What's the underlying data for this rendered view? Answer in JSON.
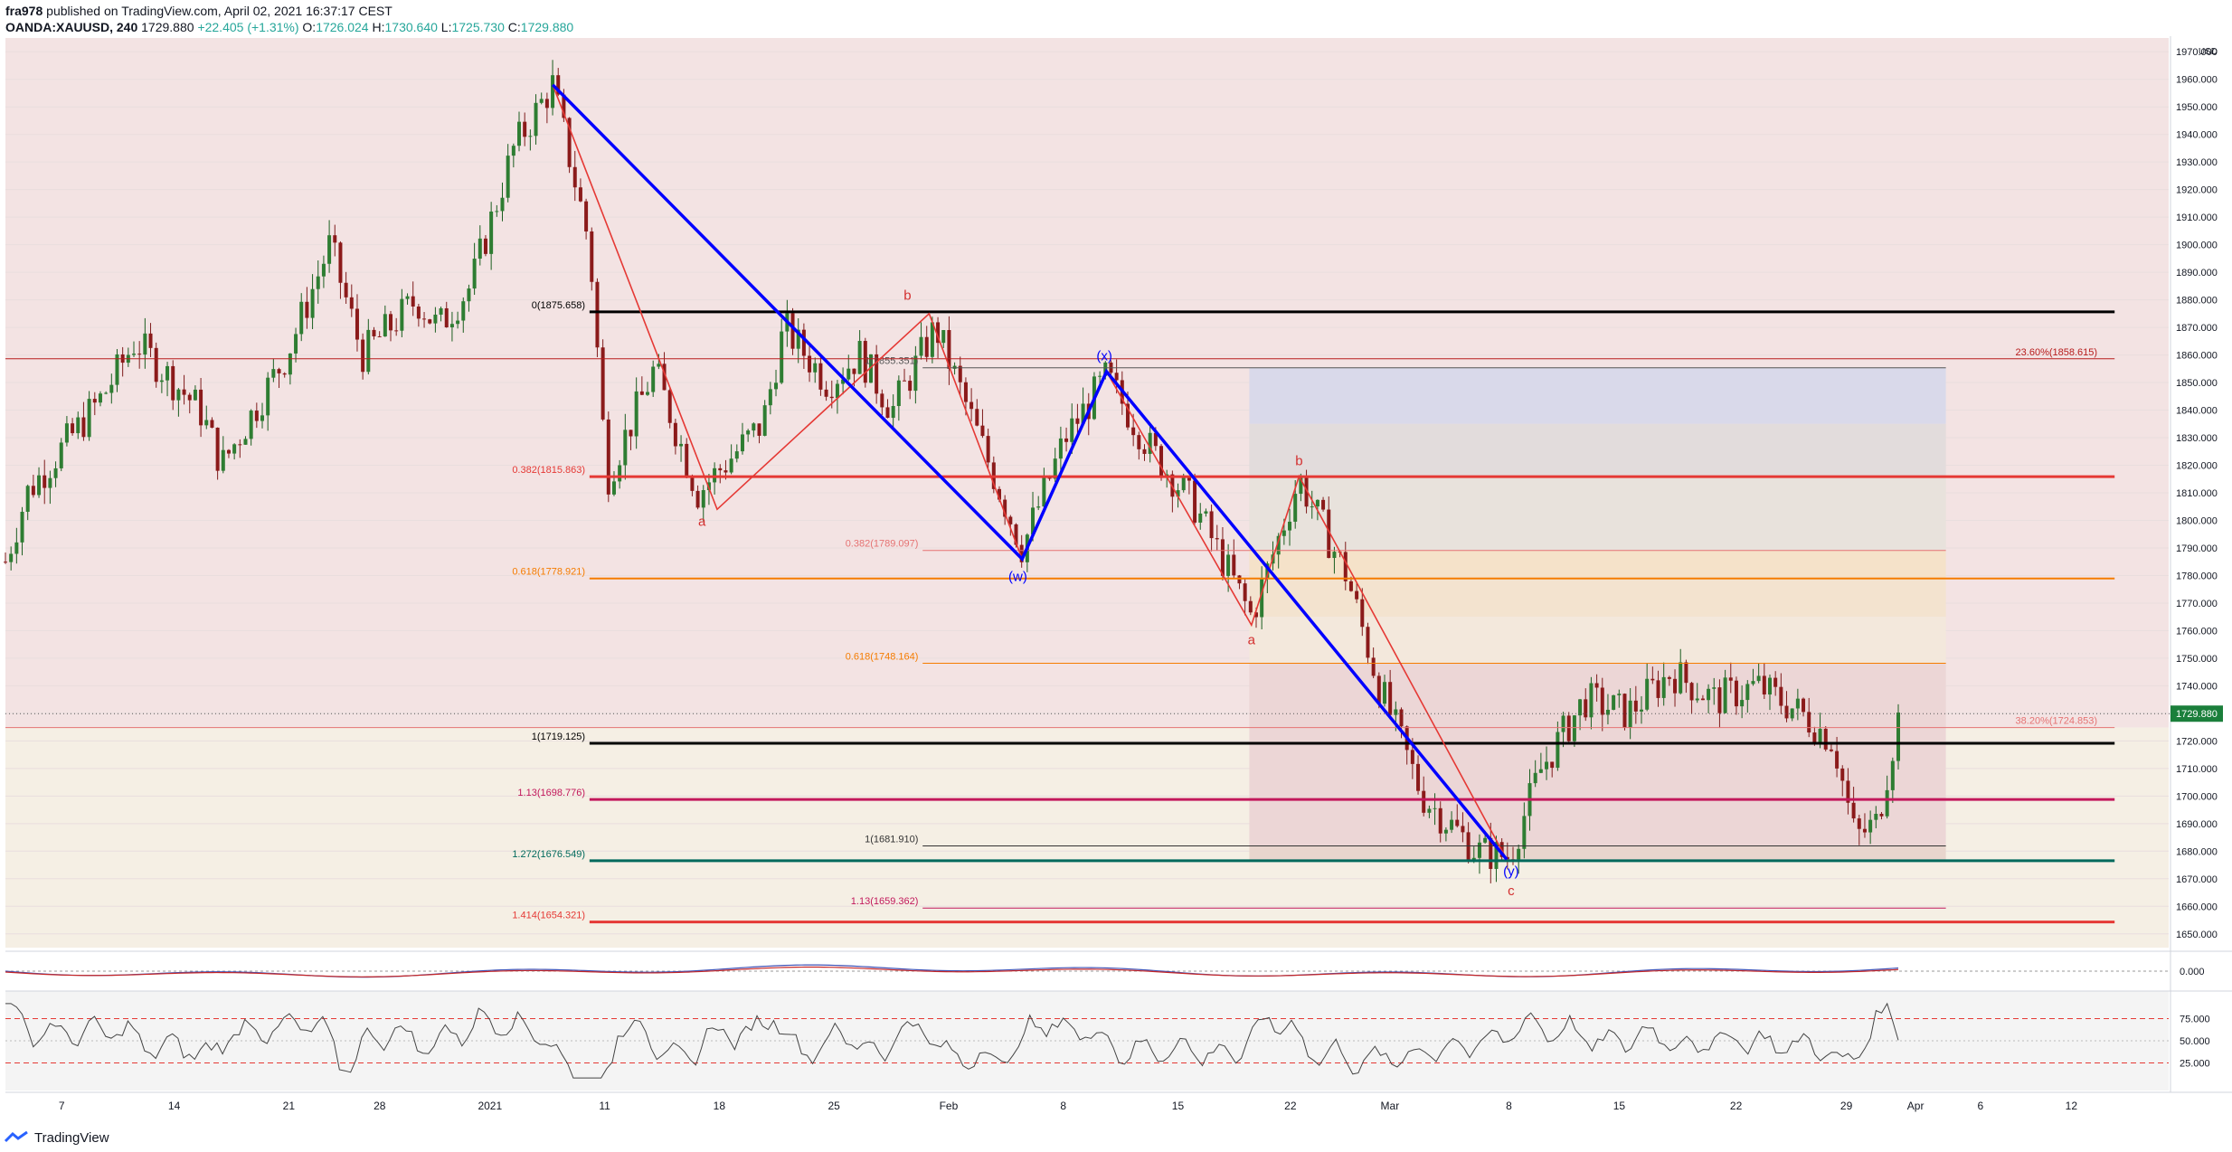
{
  "header": {
    "publisher": "fra978",
    "published_text": "published on TradingView.com, April 02, 2021 16:37:17 CEST",
    "symbol": "OANDA:XAUUSD, 240",
    "last": "1729.880",
    "change": "+22.405 (+1.31%)",
    "o_label": "O:",
    "o_val": "1726.024",
    "h_label": "H:",
    "h_val": "1730.640",
    "l_label": "L:",
    "l_val": "1725.730",
    "c_label": "C:",
    "c_val": "1729.880"
  },
  "footer": {
    "brand": "TradingView"
  },
  "colors": {
    "up": "#1b5e20",
    "down": "#7f1d1d",
    "blue_wave": "#0000ff",
    "red_wave": "#e53935",
    "fib_black": "#000000",
    "fib_red": "#e53935",
    "fib_orange": "#f57c00",
    "fib_magenta": "#c2185b",
    "fib_teal": "#00695c",
    "bg_pink": "#f3e3e3",
    "bg_cream": "#f5efe4"
  },
  "chart_data": {
    "type": "candlestick",
    "currency": "USD",
    "x_tick_labels": [
      "7",
      "14",
      "21",
      "28",
      "2021",
      "11",
      "18",
      "25",
      "Feb",
      "8",
      "15",
      "22",
      "Mar",
      "8",
      "15",
      "22",
      "29",
      "Apr",
      "6",
      "12"
    ],
    "y_tick_labels": [
      "1970.000",
      "1960.000",
      "1950.000",
      "1940.000",
      "1930.000",
      "1920.000",
      "1910.000",
      "1900.000",
      "1890.000",
      "1880.000",
      "1870.000",
      "1860.000",
      "1850.000",
      "1840.000",
      "1830.000",
      "1820.000",
      "1810.000",
      "1800.000",
      "1790.000",
      "1780.000",
      "1770.000",
      "1760.000",
      "1750.000",
      "1740.000",
      "1730.000",
      "1720.000",
      "1710.000",
      "1700.000",
      "1690.000",
      "1680.000",
      "1670.000",
      "1660.000",
      "1650.000"
    ],
    "ylim": [
      1645,
      1975
    ],
    "last_price": "1729.880",
    "fib_levels": [
      {
        "label": "0(1875.658)",
        "value": 1875.658
      },
      {
        "label": "0.382(1815.863)",
        "value": 1815.863
      },
      {
        "label": "0.618(1778.921)",
        "value": 1778.921
      },
      {
        "label": "1(1719.125)",
        "value": 1719.125
      },
      {
        "label": "1.13(1698.776)",
        "value": 1698.776
      },
      {
        "label": "1.272(1676.549)",
        "value": 1676.549
      },
      {
        "label": "1.414(1654.321)",
        "value": 1654.321
      },
      {
        "label": "1(1855.351)",
        "value": 1855.351
      },
      {
        "label": "0.382(1789.097)",
        "value": 1789.097
      },
      {
        "label": "0.618(1748.164)",
        "value": 1748.164
      },
      {
        "label": "1(1681.910)",
        "value": 1681.91
      },
      {
        "label": "1.13(1659.362)",
        "value": 1659.362
      },
      {
        "label": "23.60%(1858.615)",
        "value": 1858.615
      },
      {
        "label": "38.20%(1724.853)",
        "value": 1724.853
      }
    ],
    "wave_labels": [
      {
        "text": "b",
        "t": 0.417,
        "p": 1880
      },
      {
        "text": "a",
        "t": 0.322,
        "p": 1798
      },
      {
        "text": "(w)",
        "t": 0.468,
        "p": 1778
      },
      {
        "text": "(x)",
        "t": 0.508,
        "p": 1858
      },
      {
        "text": "b",
        "t": 0.598,
        "p": 1820
      },
      {
        "text": "a",
        "t": 0.576,
        "p": 1755
      },
      {
        "text": "(y)",
        "t": 0.696,
        "p": 1671
      },
      {
        "text": "c",
        "t": 0.696,
        "p": 1664
      }
    ],
    "blue_path": [
      [
        0.253,
        1958
      ],
      [
        0.47,
        1786
      ],
      [
        0.509,
        1854
      ],
      [
        0.694,
        1677
      ]
    ],
    "red_path_1": [
      [
        0.253,
        1958
      ],
      [
        0.329,
        1804
      ],
      [
        0.427,
        1875
      ],
      [
        0.47,
        1786
      ]
    ],
    "red_path_2": [
      [
        0.509,
        1854
      ],
      [
        0.576,
        1762
      ],
      [
        0.598,
        1816
      ],
      [
        0.694,
        1677
      ]
    ],
    "oscillator": {
      "levels": [
        "0.000"
      ]
    },
    "rsi": {
      "levels": [
        "75.000",
        "50.000",
        "25.000"
      ]
    }
  }
}
